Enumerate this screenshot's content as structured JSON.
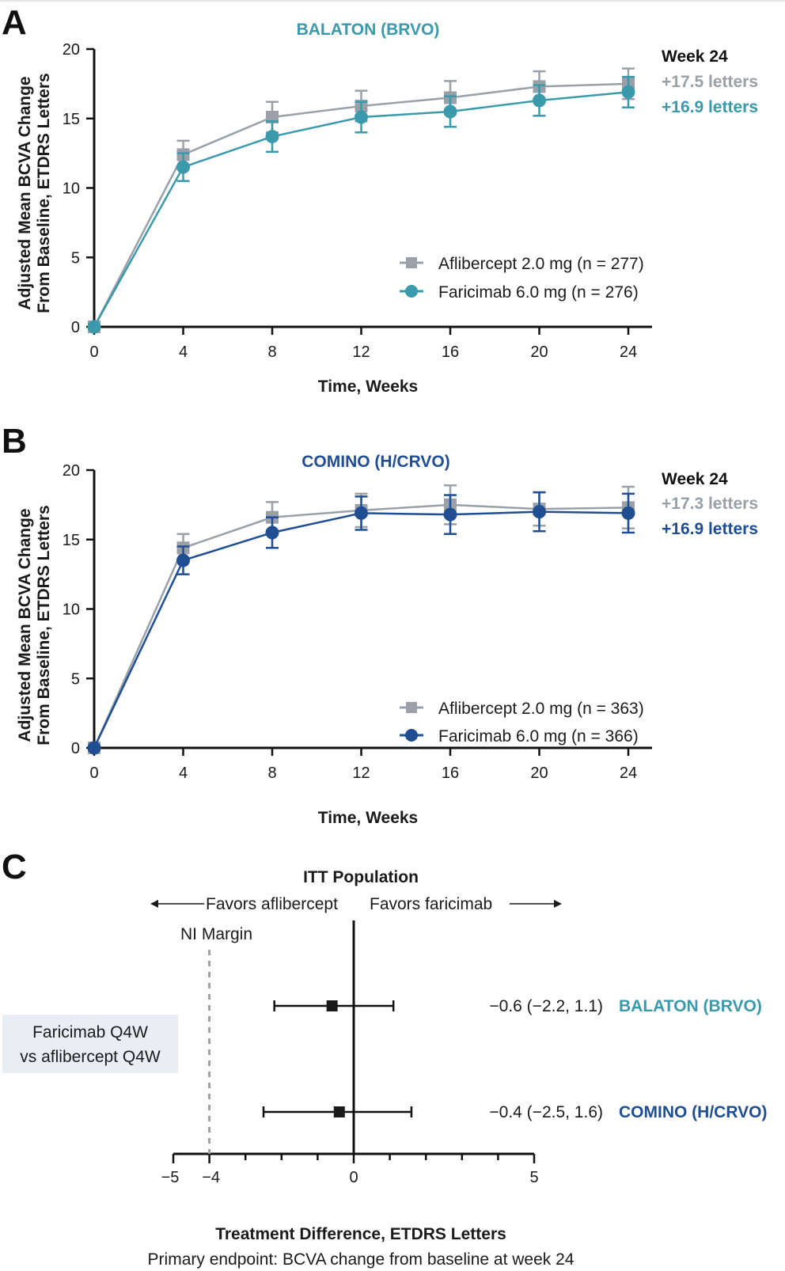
{
  "colors": {
    "aflibercept": "#9aa0a8",
    "balaton_faricimab": "#3a9aab",
    "comino_faricimab": "#1f4e93",
    "balaton_title": "#3a9aab",
    "comino_title": "#1f4e93",
    "forest_marker": "#1a1a1a",
    "ni_margin": "#a0a0a0"
  },
  "chart_data": [
    {
      "panel": "A",
      "type": "line",
      "title": "BALATON (BRVO)",
      "xlabel": "Time, Weeks",
      "ylabel": [
        "Adjusted Mean BCVA Change",
        "From Baseline, ETDRS Letters"
      ],
      "x": [
        0,
        4,
        8,
        12,
        16,
        20,
        24
      ],
      "xticks": [
        "0",
        "4",
        "8",
        "12",
        "16",
        "20",
        "24"
      ],
      "yticks": [
        "0",
        "5",
        "10",
        "15",
        "20"
      ],
      "ylim": [
        0,
        20
      ],
      "xlim": [
        0,
        24
      ],
      "grid": false,
      "legend_position": "lower-right",
      "series": [
        {
          "name": "Aflibercept 2.0 mg (n = 277)",
          "marker": "square",
          "values": [
            0,
            12.4,
            15.1,
            15.9,
            16.5,
            17.3,
            17.5
          ],
          "err": [
            0,
            1.0,
            1.1,
            1.1,
            1.2,
            1.1,
            1.1
          ]
        },
        {
          "name": "Faricimab 6.0 mg (n = 276)",
          "marker": "circle",
          "values": [
            0,
            11.5,
            13.7,
            15.1,
            15.5,
            16.3,
            16.9
          ],
          "err": [
            0,
            1.0,
            1.1,
            1.1,
            1.1,
            1.1,
            1.1
          ]
        }
      ],
      "week24": {
        "title": "Week 24",
        "aflibercept": "+17.5 letters",
        "faricimab": "+16.9 letters"
      }
    },
    {
      "panel": "B",
      "type": "line",
      "title": "COMINO (H/CRVO)",
      "xlabel": "Time, Weeks",
      "ylabel": [
        "Adjusted Mean BCVA Change",
        "From Baseline, ETDRS Letters"
      ],
      "x": [
        0,
        4,
        8,
        12,
        16,
        20,
        24
      ],
      "xticks": [
        "0",
        "4",
        "8",
        "12",
        "16",
        "20",
        "24"
      ],
      "yticks": [
        "0",
        "5",
        "10",
        "15",
        "20"
      ],
      "ylim": [
        0,
        20
      ],
      "xlim": [
        0,
        24
      ],
      "grid": false,
      "legend_position": "lower-right",
      "series": [
        {
          "name": "Aflibercept 2.0 mg (n = 363)",
          "marker": "square",
          "values": [
            0,
            14.4,
            16.6,
            17.1,
            17.5,
            17.2,
            17.3
          ],
          "err": [
            0,
            1.0,
            1.1,
            1.2,
            1.4,
            1.2,
            1.5
          ]
        },
        {
          "name": "Faricimab 6.0 mg (n = 366)",
          "marker": "circle",
          "values": [
            0,
            13.5,
            15.5,
            16.9,
            16.8,
            17.0,
            16.9
          ],
          "err": [
            0,
            1.0,
            1.1,
            1.2,
            1.4,
            1.4,
            1.4
          ]
        }
      ],
      "week24": {
        "title": "Week 24",
        "aflibercept": "+17.3 letters",
        "faricimab": "+16.9 letters"
      }
    },
    {
      "panel": "C",
      "type": "scatter",
      "subtype": "forest",
      "title": "ITT Population",
      "favors_left": "Favors aflibercept",
      "favors_right": "Favors faricimab",
      "ni_margin_label": "NI Margin",
      "ni_margin": -4,
      "xlabel": "Treatment Difference, ETDRS Letters",
      "xticks": [
        "−5",
        "−4",
        "0",
        "5"
      ],
      "xtick_values": [
        -5,
        -4,
        0,
        5
      ],
      "xlim": [
        -5,
        5
      ],
      "comparison_label": [
        "Faricimab Q4W",
        "vs aflibercept Q4W"
      ],
      "footnote": "Primary endpoint: BCVA change from baseline at week 24",
      "rows": [
        {
          "study": "BALATON (BRVO)",
          "estimate": -0.6,
          "ci_low": -2.2,
          "ci_high": 1.1,
          "label": "−0.6 (−2.2, 1.1)"
        },
        {
          "study": "COMINO (H/CRVO)",
          "estimate": -0.4,
          "ci_low": -2.5,
          "ci_high": 1.6,
          "label": "−0.4 (−2.5, 1.6)"
        }
      ]
    }
  ]
}
